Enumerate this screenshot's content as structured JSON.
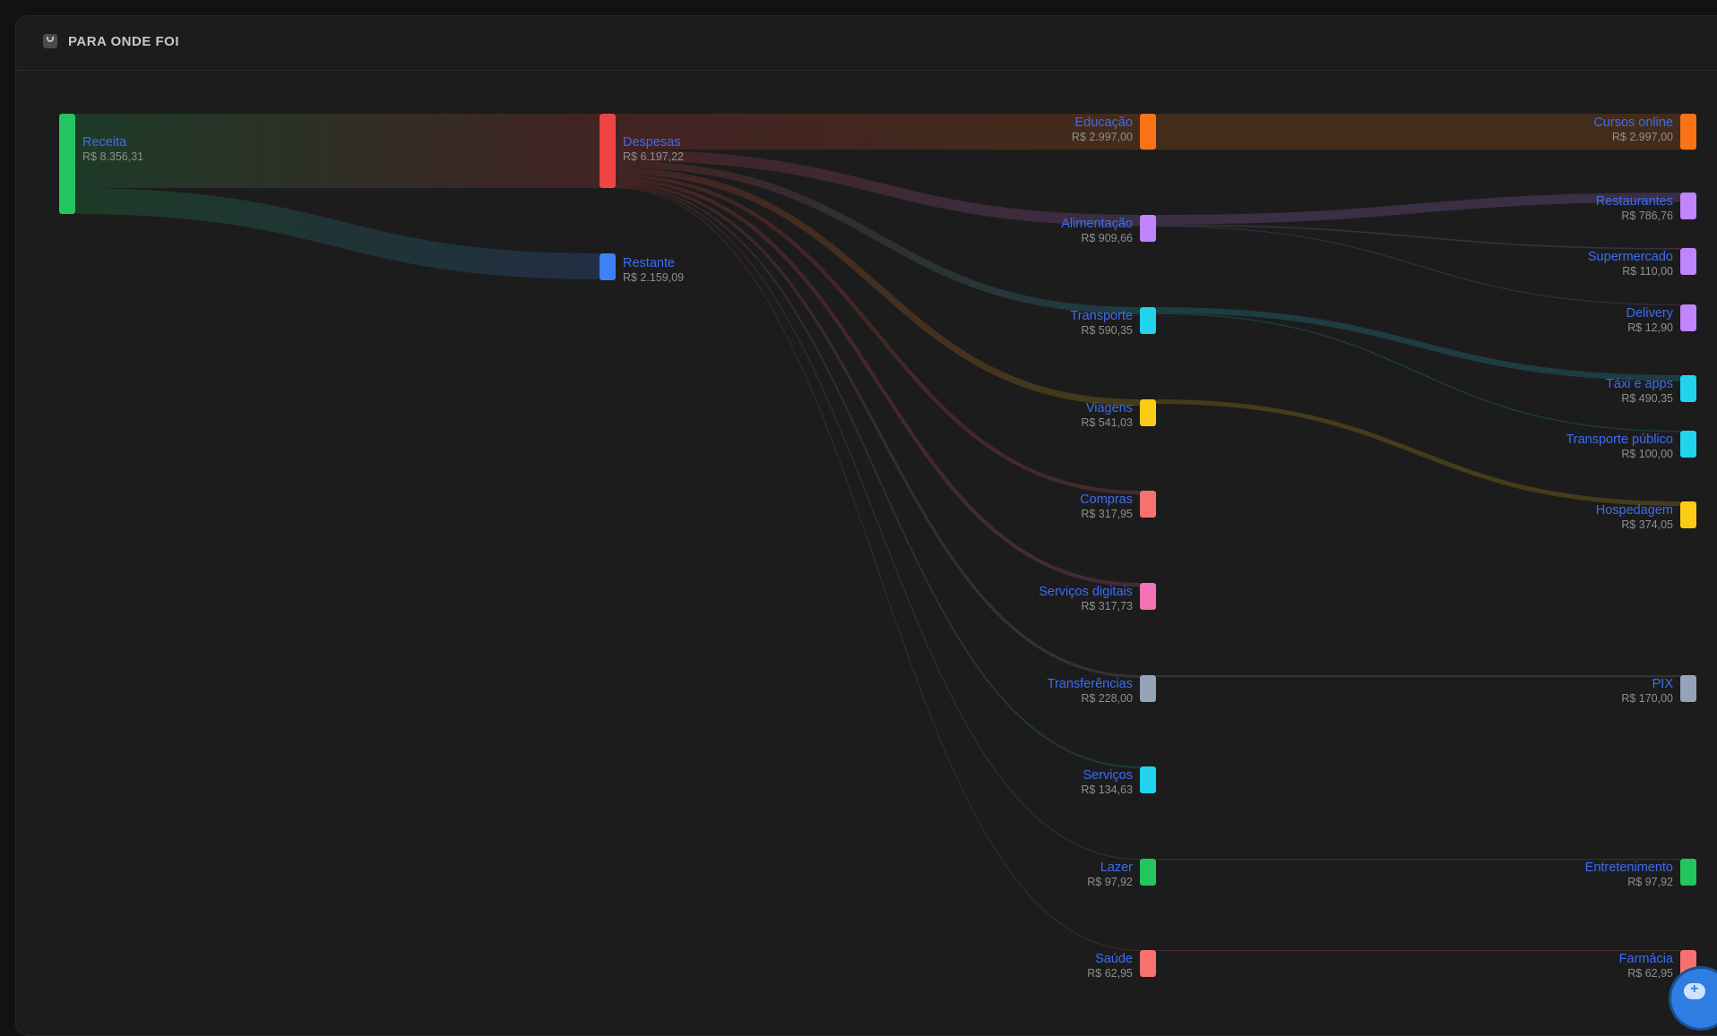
{
  "header": {
    "title": "PARA ONDE FOI",
    "icon": "chart-icon"
  },
  "chart_data": {
    "type": "sankey",
    "currency": "R$",
    "nodes": [
      {
        "id": "receita",
        "label": "Receita",
        "value": "R$ 8.356,31",
        "amount": 8356.31,
        "column": 0,
        "color": "#22c55e"
      },
      {
        "id": "despesas",
        "label": "Despesas",
        "value": "R$ 6.197,22",
        "amount": 6197.22,
        "column": 1,
        "color": "#ef4444"
      },
      {
        "id": "restante",
        "label": "Restante",
        "value": "R$ 2.159,09",
        "amount": 2159.09,
        "column": 1,
        "color": "#3b82f6"
      },
      {
        "id": "educacao",
        "label": "Educação",
        "value": "R$ 2.997,00",
        "amount": 2997.0,
        "column": 2,
        "color": "#f97316"
      },
      {
        "id": "alimentacao",
        "label": "Alimentação",
        "value": "R$ 909,66",
        "amount": 909.66,
        "column": 2,
        "color": "#c084fc"
      },
      {
        "id": "transporte",
        "label": "Transporte",
        "value": "R$ 590,35",
        "amount": 590.35,
        "column": 2,
        "color": "#22d3ee"
      },
      {
        "id": "viagens",
        "label": "Viagens",
        "value": "R$ 541,03",
        "amount": 541.03,
        "column": 2,
        "color": "#facc15"
      },
      {
        "id": "compras",
        "label": "Compras",
        "value": "R$ 317,95",
        "amount": 317.95,
        "column": 2,
        "color": "#f87171"
      },
      {
        "id": "servicos_digitais",
        "label": "Serviços digitais",
        "value": "R$ 317,73",
        "amount": 317.73,
        "column": 2,
        "color": "#f472b6"
      },
      {
        "id": "transferencias",
        "label": "Transferências",
        "value": "R$ 228,00",
        "amount": 228.0,
        "column": 2,
        "color": "#94a3b8"
      },
      {
        "id": "servicos",
        "label": "Serviços",
        "value": "R$ 134,63",
        "amount": 134.63,
        "column": 2,
        "color": "#22d3ee"
      },
      {
        "id": "lazer",
        "label": "Lazer",
        "value": "R$ 97,92",
        "amount": 97.92,
        "column": 2,
        "color": "#22c55e"
      },
      {
        "id": "saude",
        "label": "Saúde",
        "value": "R$ 62,95",
        "amount": 62.95,
        "column": 2,
        "color": "#f87171"
      },
      {
        "id": "cursos_online",
        "label": "Cursos online",
        "value": "R$ 2.997,00",
        "amount": 2997.0,
        "column": 3,
        "color": "#f97316"
      },
      {
        "id": "restaurantes",
        "label": "Restaurantes",
        "value": "R$ 786,76",
        "amount": 786.76,
        "column": 3,
        "color": "#c084fc"
      },
      {
        "id": "supermercado",
        "label": "Supermercado",
        "value": "R$ 110,00",
        "amount": 110.0,
        "column": 3,
        "color": "#c084fc"
      },
      {
        "id": "delivery",
        "label": "Delivery",
        "value": "R$ 12,90",
        "amount": 12.9,
        "column": 3,
        "color": "#c084fc"
      },
      {
        "id": "taxi",
        "label": "Táxi e apps",
        "value": "R$ 490,35",
        "amount": 490.35,
        "column": 3,
        "color": "#22d3ee"
      },
      {
        "id": "transporte_publico",
        "label": "Transporte público",
        "value": "R$ 100,00",
        "amount": 100.0,
        "column": 3,
        "color": "#22d3ee"
      },
      {
        "id": "hospedagem",
        "label": "Hospedagem",
        "value": "R$ 374,05",
        "amount": 374.05,
        "column": 3,
        "color": "#facc15"
      },
      {
        "id": "pix",
        "label": "PIX",
        "value": "R$ 170,00",
        "amount": 170.0,
        "column": 3,
        "color": "#94a3b8"
      },
      {
        "id": "entretenimento",
        "label": "Entretenimento",
        "value": "R$ 97,92",
        "amount": 97.92,
        "column": 3,
        "color": "#22c55e"
      },
      {
        "id": "farmacia",
        "label": "Farmácia",
        "value": "R$ 62,95",
        "amount": 62.95,
        "column": 3,
        "color": "#f87171"
      }
    ],
    "links": [
      {
        "source": "receita",
        "target": "despesas",
        "value": 6197.22
      },
      {
        "source": "receita",
        "target": "restante",
        "value": 2159.09
      },
      {
        "source": "despesas",
        "target": "educacao",
        "value": 2997.0
      },
      {
        "source": "despesas",
        "target": "alimentacao",
        "value": 909.66
      },
      {
        "source": "despesas",
        "target": "transporte",
        "value": 590.35
      },
      {
        "source": "despesas",
        "target": "viagens",
        "value": 541.03
      },
      {
        "source": "despesas",
        "target": "compras",
        "value": 317.95
      },
      {
        "source": "despesas",
        "target": "servicos_digitais",
        "value": 317.73
      },
      {
        "source": "despesas",
        "target": "transferencias",
        "value": 228.0
      },
      {
        "source": "despesas",
        "target": "servicos",
        "value": 134.63
      },
      {
        "source": "despesas",
        "target": "lazer",
        "value": 97.92
      },
      {
        "source": "despesas",
        "target": "saude",
        "value": 62.95
      },
      {
        "source": "educacao",
        "target": "cursos_online",
        "value": 2997.0
      },
      {
        "source": "alimentacao",
        "target": "restaurantes",
        "value": 786.76
      },
      {
        "source": "alimentacao",
        "target": "supermercado",
        "value": 110.0
      },
      {
        "source": "alimentacao",
        "target": "delivery",
        "value": 12.9
      },
      {
        "source": "transporte",
        "target": "taxi",
        "value": 490.35
      },
      {
        "source": "transporte",
        "target": "transporte_publico",
        "value": 100.0
      },
      {
        "source": "viagens",
        "target": "hospedagem",
        "value": 374.05
      },
      {
        "source": "transferencias",
        "target": "pix",
        "value": 170.0
      },
      {
        "source": "lazer",
        "target": "entretenimento",
        "value": 97.92
      },
      {
        "source": "saude",
        "target": "farmacia",
        "value": 62.95
      }
    ]
  },
  "fab": {
    "icon": "cloud-add-icon"
  }
}
